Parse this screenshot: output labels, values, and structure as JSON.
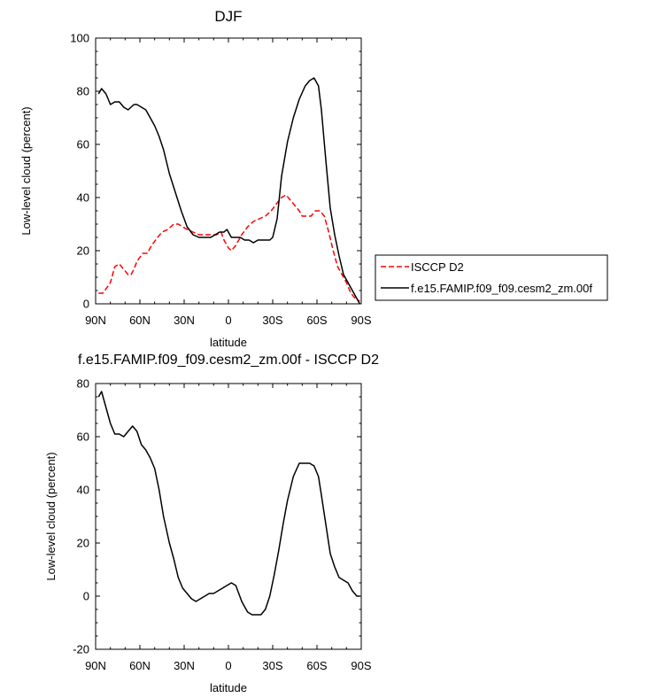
{
  "chart_data": [
    {
      "type": "line",
      "title": "DJF",
      "xlabel": "latitude",
      "ylabel": "Low-level cloud (percent)",
      "xlim": [
        -90,
        90
      ],
      "ylim": [
        0,
        100
      ],
      "x_tick_values": [
        -90,
        -60,
        -30,
        0,
        30,
        60,
        90
      ],
      "x_tick_labels": [
        "90N",
        "60N",
        "30N",
        "0",
        "30S",
        "60S",
        "90S"
      ],
      "y_ticks": [
        0,
        20,
        40,
        60,
        80,
        100
      ],
      "legend_position": "right",
      "series": [
        {
          "name": "ISCCP D2",
          "color": "#ff0000",
          "dash": "dashed",
          "x": [
            -88,
            -85,
            -80,
            -77,
            -74,
            -71,
            -68,
            -66,
            -64,
            -62,
            -58,
            -55,
            -52,
            -48,
            -45,
            -41,
            -37,
            -34,
            -31,
            -28,
            -24,
            -20,
            -16,
            -12,
            -8,
            -5,
            -3,
            0,
            2,
            5,
            9,
            13,
            17,
            21,
            25,
            29,
            33,
            36,
            39,
            42,
            45,
            48,
            50,
            53,
            56,
            59,
            62,
            65,
            68,
            71,
            74,
            77,
            80,
            83,
            86,
            89
          ],
          "y": [
            4,
            4,
            8,
            14,
            15,
            13,
            11,
            11,
            13,
            16,
            19,
            19,
            22,
            25,
            27,
            28,
            30,
            30,
            29,
            28,
            27,
            26,
            26,
            26,
            26,
            27,
            24,
            21,
            20,
            22,
            26,
            29,
            31,
            32,
            33,
            35,
            38,
            40,
            41,
            39,
            37,
            35,
            33,
            33,
            33,
            35,
            35,
            33,
            27,
            20,
            14,
            11,
            8,
            4,
            2,
            1
          ]
        },
        {
          "name": "f.e15.FAMIP.f09_f09.cesm2_zm.00f",
          "color": "#000000",
          "dash": "solid",
          "x": [
            -88,
            -86,
            -83,
            -80,
            -77,
            -74,
            -71,
            -68,
            -66,
            -64,
            -62,
            -59,
            -56,
            -53,
            -50,
            -47,
            -44,
            -40,
            -36,
            -32,
            -28,
            -24,
            -20,
            -16,
            -12,
            -9,
            -6,
            -3,
            -1,
            2,
            5,
            8,
            11,
            14,
            17,
            20,
            22,
            24,
            26,
            28,
            30,
            33,
            36,
            40,
            44,
            48,
            52,
            55,
            58,
            61,
            63,
            66,
            69,
            72,
            75,
            78,
            81,
            84,
            87,
            89
          ],
          "y": [
            79,
            81,
            79,
            75,
            76,
            76,
            74,
            73,
            74,
            75,
            75,
            74,
            73,
            70,
            67,
            63,
            58,
            49,
            42,
            35,
            29,
            26,
            25,
            25,
            25,
            26,
            27,
            27,
            28,
            25,
            25,
            25,
            24,
            24,
            23,
            24,
            24,
            24,
            24,
            24,
            25,
            32,
            48,
            61,
            70,
            77,
            82,
            84,
            85,
            82,
            73,
            54,
            36,
            26,
            18,
            11,
            8,
            5,
            2,
            0
          ]
        }
      ]
    },
    {
      "type": "line",
      "title": "f.e15.FAMIP.f09_f09.cesm2_zm.00f - ISCCP D2",
      "xlabel": "latitude",
      "ylabel": "Low-level cloud (percent)",
      "xlim": [
        -90,
        90
      ],
      "ylim": [
        -20,
        80
      ],
      "x_tick_values": [
        -90,
        -60,
        -30,
        0,
        30,
        60,
        90
      ],
      "x_tick_labels": [
        "90N",
        "60N",
        "30N",
        "0",
        "30S",
        "60S",
        "90S"
      ],
      "y_ticks": [
        -20,
        0,
        20,
        40,
        60,
        80
      ],
      "series": [
        {
          "color": "#000000",
          "dash": "solid",
          "x": [
            -88,
            -86,
            -83,
            -80,
            -77,
            -74,
            -71,
            -68,
            -65,
            -62,
            -59,
            -56,
            -53,
            -50,
            -47,
            -44,
            -40,
            -37,
            -34,
            -31,
            -28,
            -25,
            -22,
            -19,
            -16,
            -13,
            -10,
            -7,
            -4,
            -1,
            2,
            5,
            7,
            9,
            11,
            13,
            16,
            19,
            22,
            25,
            28,
            31,
            34,
            37,
            40,
            44,
            48,
            52,
            55,
            58,
            61,
            63,
            66,
            69,
            72,
            75,
            78,
            81,
            84,
            87,
            89
          ],
          "y": [
            75,
            77,
            71,
            65,
            61,
            61,
            60,
            62,
            64,
            62,
            57,
            55,
            52,
            48,
            40,
            30,
            20,
            14,
            7,
            3,
            1,
            -1,
            -2,
            -1,
            0,
            1,
            1,
            2,
            3,
            4,
            5,
            4,
            1,
            -2,
            -4,
            -6,
            -7,
            -7,
            -7,
            -5,
            0,
            8,
            17,
            27,
            36,
            45,
            50,
            50,
            50,
            49,
            45,
            38,
            27,
            16,
            11,
            7,
            6,
            5,
            2,
            0,
            0
          ]
        }
      ]
    }
  ]
}
